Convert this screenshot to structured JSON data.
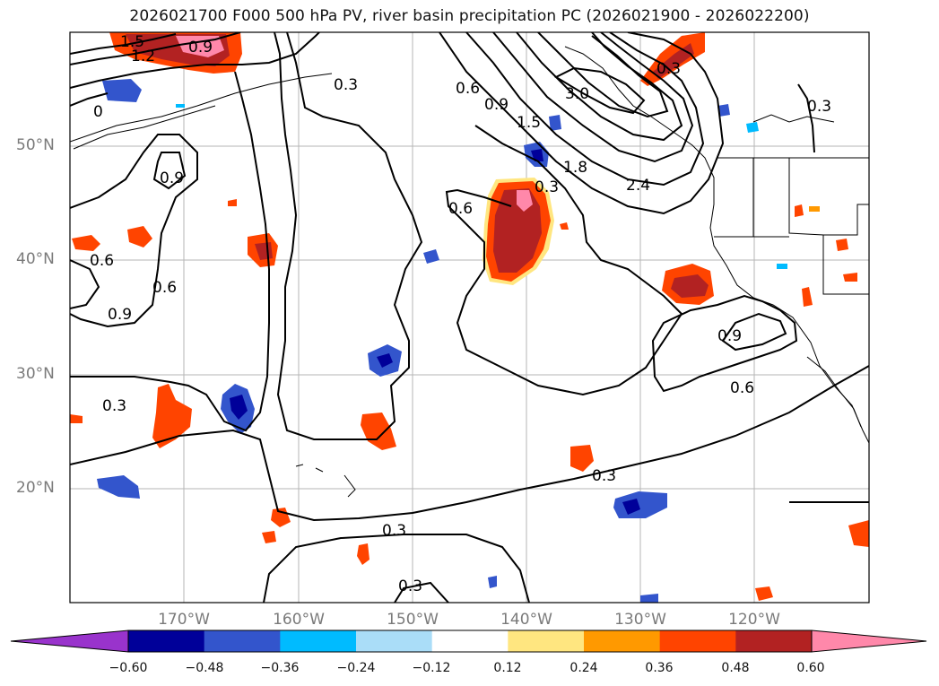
{
  "title": "2026021700 F000 500 hPa PV, river basin precipitation PC (2026021900 - 2026022200)",
  "lat_ticks": [
    "50°N",
    "40°N",
    "30°N",
    "20°N"
  ],
  "lon_ticks": [
    "170°W",
    "160°W",
    "150°W",
    "140°W",
    "130°W",
    "120°W"
  ],
  "contour_labels": [
    "1.5",
    "1.2",
    "0.9",
    "0.3",
    "0",
    "0.3",
    "0.6",
    "0.9",
    "1.5",
    "3.0",
    "1.8",
    "2.4",
    "0.3",
    "0.3",
    "0.9",
    "0.6",
    "0.6",
    "0.6",
    "0.9",
    "0.3",
    "0.9",
    "0.6",
    "0.3",
    "0.3",
    "0.3"
  ],
  "colorbar": {
    "tick_labels": [
      "−0.60",
      "−0.48",
      "−0.36",
      "−0.24",
      "−0.12",
      "0.12",
      "0.24",
      "0.36",
      "0.48",
      "0.60"
    ],
    "colors": [
      "#9933cc",
      "#000099",
      "#3355cc",
      "#00bbff",
      "#aaddf8",
      "#ffffff",
      "#ffe680",
      "#ff9900",
      "#ff4400",
      "#b22222",
      "#ff88aa"
    ]
  }
}
